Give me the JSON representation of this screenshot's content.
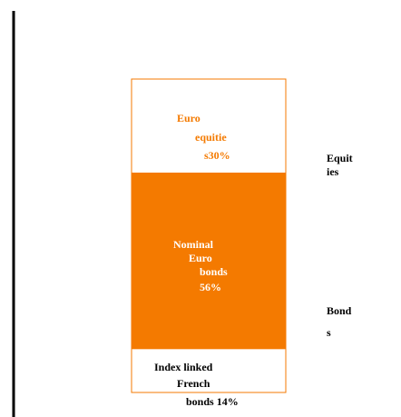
{
  "chart_data": {
    "type": "stacked_bar",
    "ylim": [
      0,
      100
    ],
    "series": [
      {
        "label_lines": [
          "Index linked",
          "French",
          "bonds 14%"
        ],
        "values": [
          14
        ],
        "fill": "#ffffff",
        "border": "#f47a00",
        "text_color": "#000000"
      },
      {
        "label_lines": [
          "Nominal",
          "Euro",
          "bonds",
          "56%"
        ],
        "values": [
          56
        ],
        "fill": "#f47a00",
        "border": "#f47a00",
        "text_color": "#ffffff"
      },
      {
        "label_lines": [
          "Euro",
          "equitie",
          "s30%"
        ],
        "values": [
          30
        ],
        "fill": "#ffffff",
        "border": "#f47a00",
        "text_color": "#f47a00"
      }
    ],
    "group_labels": [
      [
        "Equit",
        "ies"
      ],
      [
        "Bond",
        "s"
      ]
    ]
  }
}
